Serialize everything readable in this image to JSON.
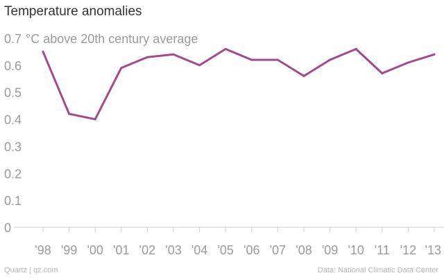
{
  "chart_data": {
    "type": "line",
    "title": "Temperature anomalies",
    "ylabel": "°C above 20th century average",
    "xlabel": "",
    "categories": [
      "'98",
      "'99",
      "'00",
      "'01",
      "'02",
      "'03",
      "'04",
      "'05",
      "'06",
      "'07",
      "'08",
      "'09",
      "'10",
      "'11",
      "'12",
      "'13"
    ],
    "values": [
      0.65,
      0.42,
      0.4,
      0.59,
      0.63,
      0.64,
      0.6,
      0.66,
      0.62,
      0.62,
      0.56,
      0.62,
      0.66,
      0.57,
      0.61,
      0.64
    ],
    "yticks": [
      "0",
      "0.1",
      "0.2",
      "0.3",
      "0.4",
      "0.5",
      "0.6",
      "0.7"
    ],
    "ylim": [
      0,
      0.7
    ],
    "grid": false,
    "series_color": "#a24a8a",
    "axis_color": "#cccccc",
    "tick_color": "#9a9a9a"
  },
  "footer": {
    "source_left": "Quartz | qz.com",
    "source_right": "Data: National Climatic Data Center"
  }
}
